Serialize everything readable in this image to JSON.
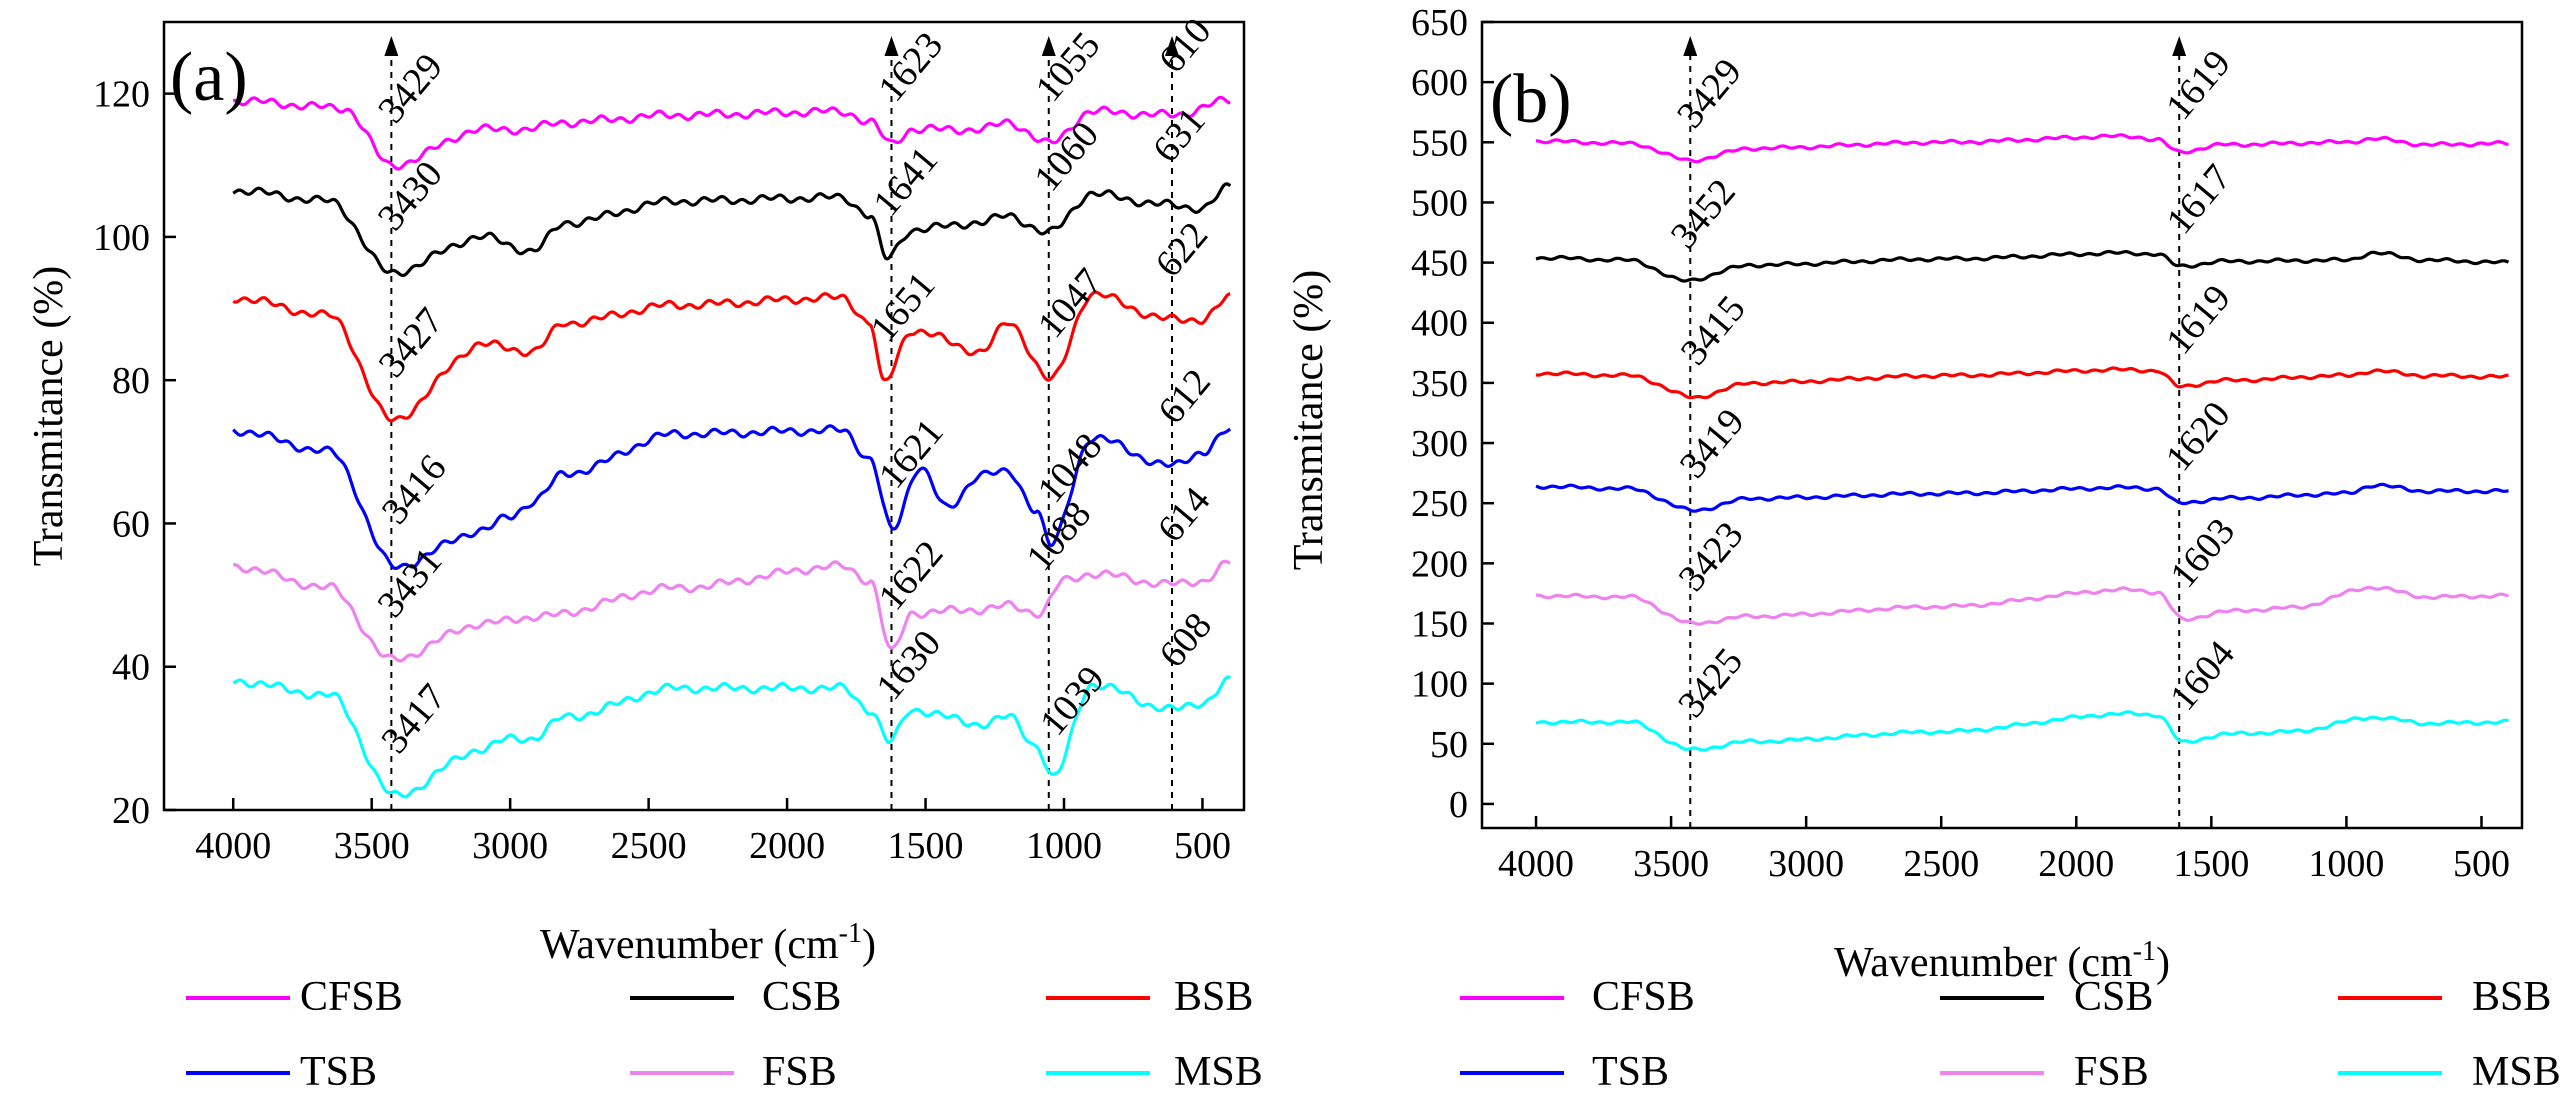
{
  "legend_entries": [
    {
      "name": "CFSB",
      "color": "#ff00ff"
    },
    {
      "name": "CSB",
      "color": "#000000"
    },
    {
      "name": "BSB",
      "color": "#ff0000"
    },
    {
      "name": "TSB",
      "color": "#0000ff"
    },
    {
      "name": "FSB",
      "color": "#ee82ee"
    },
    {
      "name": "MSB",
      "color": "#00ffff"
    }
  ],
  "chart_data": [
    {
      "type": "line",
      "panel_label": "(a)",
      "title": "",
      "xlabel": "Wavenumber (cm",
      "xlabel_sup": "-1",
      "xlabel_tail": ")",
      "ylabel": "Transmitance (%)",
      "xlim": [
        4250,
        350
      ],
      "ylim": [
        20,
        130
      ],
      "xticks": [
        4000,
        3500,
        3000,
        2500,
        2000,
        1500,
        1000,
        500
      ],
      "yticks": [
        20,
        40,
        60,
        80,
        100,
        120
      ],
      "dashed_lines": [
        3429,
        1623,
        1055,
        610
      ],
      "series": [
        {
          "name": "CFSB",
          "color": "#ff00ff",
          "baseline": 119,
          "shape": 0.3,
          "anchors": [
            [
              4000,
              119
            ],
            [
              3600,
              118
            ],
            [
              3429,
              110
            ],
            [
              3100,
              115
            ],
            [
              2950,
              115
            ],
            [
              2800,
              116
            ],
            [
              2400,
              117
            ],
            [
              1800,
              117.5
            ],
            [
              1700,
              116
            ],
            [
              1623,
              113
            ],
            [
              1550,
              115
            ],
            [
              1300,
              115
            ],
            [
              1200,
              116
            ],
            [
              1055,
              113
            ],
            [
              900,
              117.5
            ],
            [
              610,
              117
            ],
            [
              400,
              119
            ]
          ],
          "peaks": [
            "3429",
            "1623",
            "1055",
            "610"
          ],
          "peak_x": [
            3429,
            1623,
            1055,
            610
          ]
        },
        {
          "name": "CSB",
          "color": "#000000",
          "baseline": 106,
          "shape": 0.6,
          "anchors": [
            [
              4000,
              106.5
            ],
            [
              3650,
              105
            ],
            [
              3430,
              95
            ],
            [
              3100,
              100
            ],
            [
              2920,
              98
            ],
            [
              2800,
              102
            ],
            [
              2400,
              105
            ],
            [
              1800,
              105.5
            ],
            [
              1700,
              103
            ],
            [
              1641,
              97
            ],
            [
              1550,
              101
            ],
            [
              1300,
              102
            ],
            [
              1200,
              103
            ],
            [
              1060,
              100.5
            ],
            [
              900,
              106
            ],
            [
              631,
              104.5
            ],
            [
              500,
              104
            ],
            [
              400,
              107
            ]
          ],
          "peaks": [
            "3430",
            "1641",
            "1060",
            "631"
          ],
          "peak_x": [
            3430,
            1641,
            1060,
            631
          ]
        },
        {
          "name": "BSB",
          "color": "#ff0000",
          "baseline": 91,
          "shape": 0.9,
          "anchors": [
            [
              4000,
              91.5
            ],
            [
              3650,
              89
            ],
            [
              3427,
              74.5
            ],
            [
              3100,
              85
            ],
            [
              2920,
              84
            ],
            [
              2800,
              88
            ],
            [
              2400,
              90.5
            ],
            [
              1800,
              91.5
            ],
            [
              1700,
              88
            ],
            [
              1651,
              79.5
            ],
            [
              1550,
              87
            ],
            [
              1300,
              84
            ],
            [
              1200,
              88
            ],
            [
              1047,
              80
            ],
            [
              900,
              92
            ],
            [
              622,
              88.5
            ],
            [
              500,
              88.5
            ],
            [
              400,
              91.5
            ]
          ],
          "peaks": [
            "3427",
            "1651",
            "1047",
            "622"
          ],
          "peak_x": [
            3427,
            1651,
            1047,
            622
          ]
        },
        {
          "name": "TSB",
          "color": "#0000ff",
          "baseline": 73,
          "shape": 1.2,
          "anchors": [
            [
              4000,
              73
            ],
            [
              3650,
              70
            ],
            [
              3416,
              54
            ],
            [
              3100,
              59
            ],
            [
              3000,
              61
            ],
            [
              2920,
              63
            ],
            [
              2800,
              67
            ],
            [
              2400,
              72.5
            ],
            [
              1800,
              73
            ],
            [
              1700,
              69
            ],
            [
              1621,
              59
            ],
            [
              1520,
              68
            ],
            [
              1420,
              62
            ],
            [
              1300,
              67
            ],
            [
              1200,
              67
            ],
            [
              1100,
              62
            ],
            [
              1048,
              57
            ],
            [
              900,
              72
            ],
            [
              612,
              68
            ],
            [
              500,
              70
            ],
            [
              400,
              73
            ]
          ],
          "peaks": [
            "3416",
            "1621",
            "1048",
            "612"
          ],
          "peak_x": [
            3416,
            1621,
            1048,
            612
          ]
        },
        {
          "name": "FSB",
          "color": "#ee82ee",
          "baseline": 54,
          "shape": 1.5,
          "anchors": [
            [
              4000,
              54
            ],
            [
              3650,
              51
            ],
            [
              3431,
              41
            ],
            [
              3100,
              46
            ],
            [
              2900,
              47
            ],
            [
              2400,
              51
            ],
            [
              1800,
              54
            ],
            [
              1700,
              52
            ],
            [
              1622,
              42
            ],
            [
              1550,
              47.5
            ],
            [
              1300,
              48
            ],
            [
              1200,
              48.5
            ],
            [
              1088,
              47.5
            ],
            [
              1000,
              52
            ],
            [
              900,
              53
            ],
            [
              614,
              51.5
            ],
            [
              500,
              52
            ],
            [
              400,
              54.5
            ]
          ],
          "peaks": [
            "3431",
            "1622",
            "1088",
            "614"
          ],
          "peak_x": [
            3431,
            1622,
            1088,
            614
          ]
        },
        {
          "name": "MSB",
          "color": "#00ffff",
          "baseline": 38,
          "shape": 1.8,
          "anchors": [
            [
              4000,
              38
            ],
            [
              3650,
              36
            ],
            [
              3417,
              22
            ],
            [
              3100,
              28.5
            ],
            [
              3000,
              30
            ],
            [
              2920,
              30
            ],
            [
              2800,
              33
            ],
            [
              2400,
              37
            ],
            [
              1800,
              37
            ],
            [
              1700,
              34
            ],
            [
              1630,
              29.5
            ],
            [
              1550,
              34
            ],
            [
              1300,
              32
            ],
            [
              1200,
              33
            ],
            [
              1100,
              29
            ],
            [
              1039,
              24.5
            ],
            [
              900,
              37.5
            ],
            [
              608,
              34
            ],
            [
              500,
              35
            ],
            [
              400,
              38
            ]
          ],
          "peaks": [
            "3417",
            "1630",
            "1039",
            "608"
          ],
          "peak_x": [
            3417,
            1630,
            1039,
            608
          ]
        }
      ]
    },
    {
      "type": "line",
      "panel_label": "(b)",
      "title": "",
      "xlabel": "Wavenumber (cm",
      "xlabel_sup": "-1",
      "xlabel_tail": ")",
      "ylabel": "Transmitance (%)",
      "xlim": [
        4200,
        350
      ],
      "ylim": [
        -20,
        650
      ],
      "xticks": [
        4000,
        3500,
        3000,
        2500,
        2000,
        1500,
        1000,
        500
      ],
      "yticks": [
        0,
        50,
        100,
        150,
        200,
        250,
        300,
        350,
        400,
        450,
        500,
        550,
        600,
        650
      ],
      "dashed_lines": [
        3429,
        1619
      ],
      "series": [
        {
          "name": "CFSB",
          "color": "#ff00ff",
          "shape": 0.3,
          "anchors": [
            [
              4000,
              551
            ],
            [
              3650,
              549
            ],
            [
              3429,
              535
            ],
            [
              3200,
              545
            ],
            [
              2500,
              550
            ],
            [
              1800,
              555
            ],
            [
              1700,
              552
            ],
            [
              1619,
              542
            ],
            [
              1450,
              548
            ],
            [
              1000,
              550
            ],
            [
              900,
              553
            ],
            [
              700,
              548
            ],
            [
              400,
              549
            ]
          ],
          "peaks": [
            "3429",
            "1619"
          ],
          "peak_x": [
            3429,
            1619
          ]
        },
        {
          "name": "CSB",
          "color": "#000000",
          "shape": 0.6,
          "anchors": [
            [
              4000,
              454
            ],
            [
              3650,
              452
            ],
            [
              3452,
              435
            ],
            [
              3200,
              448
            ],
            [
              2500,
              453
            ],
            [
              1800,
              458
            ],
            [
              1700,
              457
            ],
            [
              1617,
              447
            ],
            [
              1450,
              451
            ],
            [
              1000,
              452
            ],
            [
              900,
              458
            ],
            [
              700,
              452
            ],
            [
              400,
              450
            ]
          ],
          "peaks": [
            "3452",
            "1617"
          ],
          "peak_x": [
            3452,
            1617
          ]
        },
        {
          "name": "BSB",
          "color": "#ff0000",
          "shape": 0.9,
          "anchors": [
            [
              4000,
              358
            ],
            [
              3650,
              356
            ],
            [
              3415,
              338
            ],
            [
              3200,
              350
            ],
            [
              2500,
              356
            ],
            [
              1800,
              361
            ],
            [
              1700,
              360
            ],
            [
              1619,
              347
            ],
            [
              1450,
              352
            ],
            [
              1000,
              356
            ],
            [
              900,
              360
            ],
            [
              700,
              356
            ],
            [
              400,
              355
            ]
          ],
          "peaks": [
            "3415",
            "1619"
          ],
          "peak_x": [
            3415,
            1619
          ]
        },
        {
          "name": "TSB",
          "color": "#0000ff",
          "shape": 1.2,
          "anchors": [
            [
              4000,
              264
            ],
            [
              3650,
              262
            ],
            [
              3419,
              244
            ],
            [
              3200,
              254
            ],
            [
              2500,
              258
            ],
            [
              1800,
              263
            ],
            [
              1700,
              262
            ],
            [
              1620,
              250
            ],
            [
              1450,
              254
            ],
            [
              1000,
              258
            ],
            [
              900,
              265
            ],
            [
              700,
              260
            ],
            [
              400,
              260
            ]
          ],
          "peaks": [
            "3419",
            "1620"
          ],
          "peak_x": [
            3419,
            1620
          ]
        },
        {
          "name": "FSB",
          "color": "#ee82ee",
          "shape": 1.5,
          "anchors": [
            [
              4000,
              173
            ],
            [
              3650,
              172
            ],
            [
              3423,
              150
            ],
            [
              3200,
              156
            ],
            [
              2500,
              164
            ],
            [
              1800,
              178
            ],
            [
              1700,
              176
            ],
            [
              1603,
              153
            ],
            [
              1450,
              160
            ],
            [
              1200,
              163
            ],
            [
              900,
              180
            ],
            [
              700,
              172
            ],
            [
              400,
              173
            ]
          ],
          "peaks": [
            "3423",
            "1603"
          ],
          "peak_x": [
            3423,
            1603
          ]
        },
        {
          "name": "MSB",
          "color": "#00ffff",
          "shape": 1.8,
          "anchors": [
            [
              4000,
              68
            ],
            [
              3650,
              68
            ],
            [
              3425,
              45
            ],
            [
              3200,
              52
            ],
            [
              2500,
              60
            ],
            [
              1800,
              75
            ],
            [
              1700,
              74
            ],
            [
              1604,
              51
            ],
            [
              1450,
              58
            ],
            [
              1200,
              60
            ],
            [
              900,
              72
            ],
            [
              700,
              67
            ],
            [
              400,
              68
            ]
          ],
          "peaks": [
            "3425",
            "1604"
          ],
          "peak_x": [
            3425,
            1604
          ]
        }
      ]
    }
  ]
}
